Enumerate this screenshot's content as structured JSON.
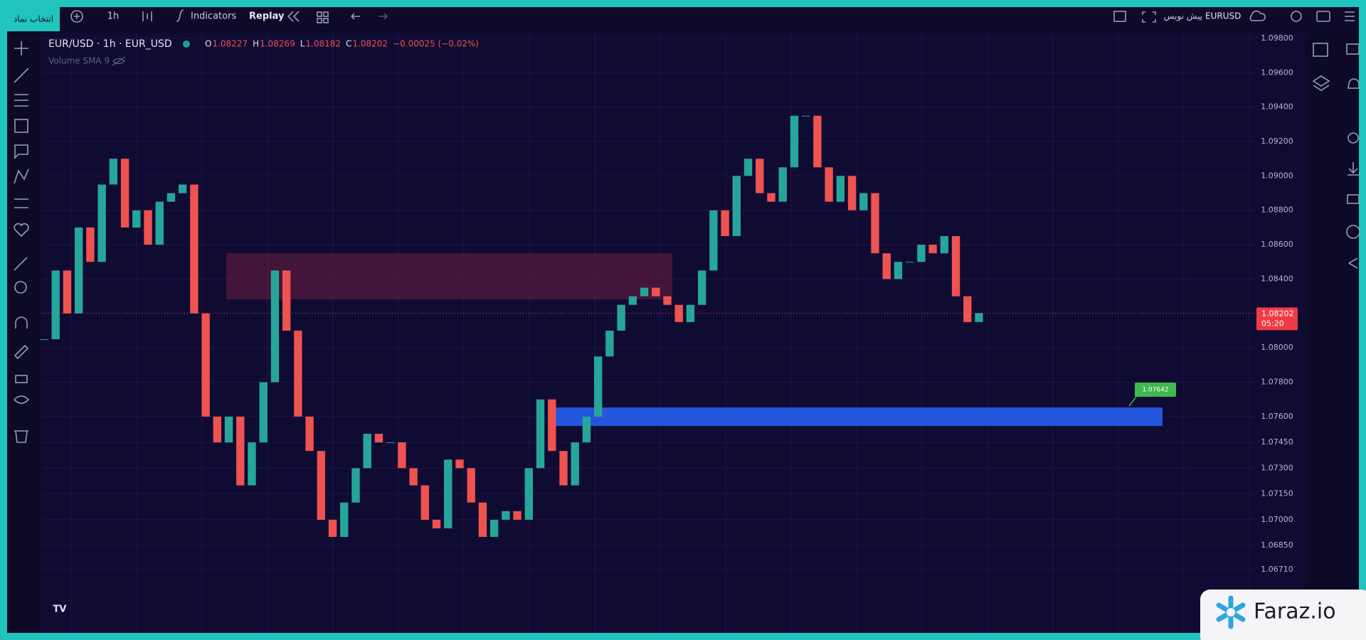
{
  "toolbar": {
    "symbol_button": "انتخاب نماد",
    "interval": "1h",
    "indicators": "Indicators",
    "replay": "Replay",
    "symbol": "EURUSD",
    "draft": "پیش نویس"
  },
  "legend": {
    "title": "EUR/USD · 1h · EUR_USD",
    "ohlc": [
      {
        "key": "O",
        "value": "1.08227"
      },
      {
        "key": "H",
        "value": "1.08269"
      },
      {
        "key": "L",
        "value": "1.08182"
      },
      {
        "key": "C",
        "value": "1.08202"
      }
    ],
    "change": "−0.00025 (−0.02%)",
    "indicator": "Volume SMA 9"
  },
  "price_axis": {
    "ticks": [
      {
        "value": 1.098,
        "label": "1.09800"
      },
      {
        "value": 1.096,
        "label": "1.09600"
      },
      {
        "value": 1.094,
        "label": "1.09400"
      },
      {
        "value": 1.092,
        "label": "1.09200"
      },
      {
        "value": 1.09,
        "label": "1.09000"
      },
      {
        "value": 1.088,
        "label": "1.08800"
      },
      {
        "value": 1.086,
        "label": "1.08600"
      },
      {
        "value": 1.084,
        "label": "1.08400"
      },
      {
        "value": 1.08,
        "label": "1.08000"
      },
      {
        "value": 1.078,
        "label": "1.07800"
      },
      {
        "value": 1.076,
        "label": "1.07600"
      },
      {
        "value": 1.0745,
        "label": "1.07450"
      },
      {
        "value": 1.073,
        "label": "1.07300"
      },
      {
        "value": 1.0715,
        "label": "1.07150"
      },
      {
        "value": 1.07,
        "label": "1.07000"
      },
      {
        "value": 1.0685,
        "label": "1.06850"
      },
      {
        "value": 1.0671,
        "label": "1.06710"
      }
    ]
  },
  "last_price": {
    "value": 1.08202,
    "label": "1.08202",
    "countdown": "05:20"
  },
  "zone_label": "1.07642",
  "closes": [
    1.0805,
    1.0845,
    1.082,
    1.087,
    1.085,
    1.0895,
    1.091,
    1.087,
    1.088,
    1.086,
    1.0885,
    1.089,
    1.0895,
    1.082,
    1.076,
    1.0745,
    1.076,
    1.072,
    1.0745,
    1.078,
    1.0845,
    1.081,
    1.076,
    1.074,
    1.07,
    1.069,
    1.071,
    1.073,
    1.075,
    1.0745,
    1.0745,
    1.073,
    1.072,
    1.07,
    1.0695,
    1.0735,
    1.073,
    1.071,
    1.069,
    1.07,
    1.0705,
    1.07,
    1.073,
    1.077,
    1.074,
    1.072,
    1.0745,
    1.076,
    1.0795,
    1.081,
    1.0825,
    1.083,
    1.0835,
    1.083,
    1.0825,
    1.0815,
    1.0825,
    1.0845,
    1.088,
    1.0865,
    1.09,
    1.091,
    1.089,
    1.0885,
    1.0905,
    1.0935,
    1.0935,
    1.0905,
    1.0885,
    1.09,
    1.088,
    1.089,
    1.0855,
    1.084,
    1.085,
    1.085,
    1.086,
    1.0855,
    1.0865,
    1.083,
    1.0815,
    1.08202
  ],
  "watermark": "Faraz.io"
}
